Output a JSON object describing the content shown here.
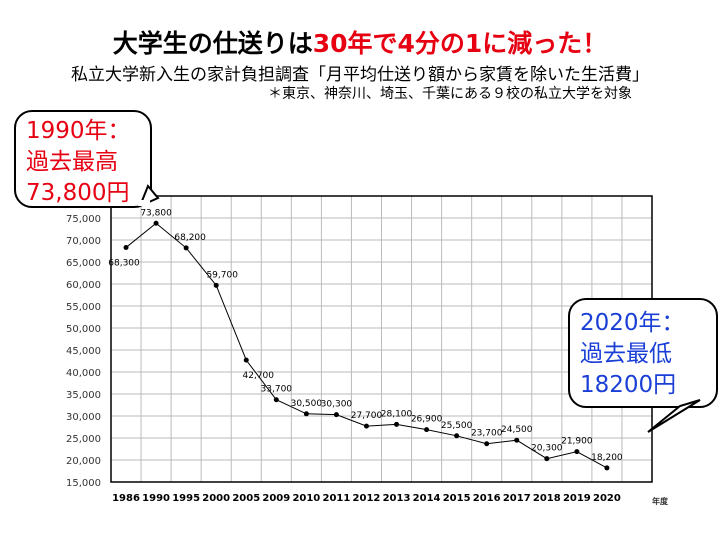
{
  "title": {
    "black": "大学生の仕送りは",
    "red": "30年で4分の1に減った！"
  },
  "subtitle": "私立大学新入生の家計負担調査「月平均仕送り額から家賃を除いた生活費」",
  "note": "＊東京、神奈川、埼玉、千葉にある９校の私立大学を対象",
  "callouts": {
    "max": {
      "line1": "1990年：",
      "line2": "過去最高",
      "line3": "73,800円"
    },
    "min": {
      "line1": "2020年：",
      "line2": "過去最低",
      "line3": "18200円"
    }
  },
  "chart_data": {
    "type": "line",
    "categories": [
      "1986",
      "1990",
      "1995",
      "2000",
      "2005",
      "2009",
      "2010",
      "2011",
      "2012",
      "2013",
      "2014",
      "2015",
      "2016",
      "2017",
      "2018",
      "2019",
      "2020"
    ],
    "values": [
      68300,
      73800,
      68200,
      59700,
      42700,
      33700,
      30500,
      30300,
      27700,
      28100,
      26900,
      25500,
      23700,
      24500,
      20300,
      21900,
      18200
    ],
    "labels": [
      "68,300",
      "73,800",
      "68,200",
      "59,700",
      "42,700",
      "33,700",
      "30,500",
      "30,300",
      "27,700",
      "28,100",
      "26,900",
      "25,500",
      "23,700",
      "24,500",
      "20,300",
      "21,900",
      "18,200"
    ],
    "yticks": [
      "15,000",
      "20,000",
      "25,000",
      "30,000",
      "35,000",
      "40,000",
      "45,000",
      "50,000",
      "55,000",
      "60,000",
      "65,000",
      "70,000",
      "75,000"
    ],
    "ylim": [
      15000,
      80000
    ],
    "xlabel": "年度",
    "grid": true
  }
}
